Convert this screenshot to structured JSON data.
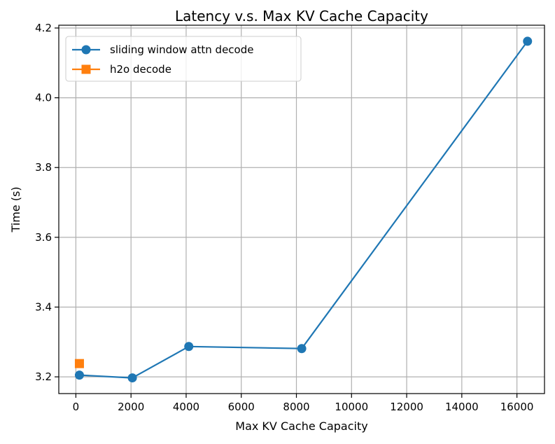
{
  "chart_data": {
    "type": "line",
    "title": "Latency v.s. Max KV Cache Capacity",
    "xlabel": "Max KV Cache Capacity",
    "ylabel": "Time (s)",
    "xlim": [
      -620,
      17000
    ],
    "ylim": [
      3.152,
      4.208
    ],
    "xticks": [
      0,
      2000,
      4000,
      6000,
      8000,
      10000,
      12000,
      14000,
      16000
    ],
    "xtick_labels": [
      "0",
      "2000",
      "4000",
      "6000",
      "8000",
      "10000",
      "12000",
      "14000",
      "16000"
    ],
    "yticks": [
      3.2,
      3.4,
      3.6,
      3.8,
      4.0,
      4.2
    ],
    "ytick_labels": [
      "3.2",
      "3.4",
      "3.6",
      "3.8",
      "4.0",
      "4.2"
    ],
    "grid": true,
    "legend_position": "top-left",
    "series": [
      {
        "name": "sliding window attn decode",
        "marker": "circle",
        "color": "#1f77b4",
        "line": true,
        "x": [
          128,
          2048,
          4096,
          8192,
          16384
        ],
        "y": [
          3.205,
          3.197,
          3.287,
          3.281,
          4.162
        ]
      },
      {
        "name": "h2o decode",
        "marker": "square",
        "color": "#ff7f0e",
        "line": false,
        "x": [
          128
        ],
        "y": [
          3.238
        ]
      }
    ]
  }
}
